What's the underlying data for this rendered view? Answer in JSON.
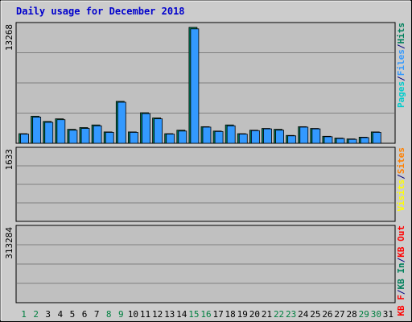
{
  "title": "Daily usage for December 2018",
  "colors": {
    "background": "#cccccc",
    "panel": "#c0c0c0",
    "pages": "#00cccc",
    "files": "#3399ff",
    "hits": "#00805c",
    "visits": "#ffff00",
    "sites": "#ff8000",
    "kb_in": "#00805c",
    "kb_out": "#ff0000",
    "weekend_label": "#008040",
    "weekday_label": "#000000"
  },
  "chart_data": [
    {
      "type": "bar",
      "name": "top",
      "max_label": "13268",
      "ymax": 13268,
      "side_labels": [
        {
          "text": "Pages",
          "color": "#00cccc"
        },
        {
          "text": "/",
          "color": "#000080"
        },
        {
          "text": "Files",
          "color": "#3399ff"
        },
        {
          "text": "/",
          "color": "#000080"
        },
        {
          "text": "Hits",
          "color": "#00805c"
        }
      ],
      "series": [
        {
          "name": "Hits",
          "values": [
            1100,
            3100,
            2500,
            2800,
            1600,
            1800,
            2100,
            1300,
            4800,
            1300,
            3500,
            2900,
            1100,
            1500,
            13268,
            1900,
            1400,
            2100,
            1100,
            1500,
            1700,
            1600,
            900,
            1900,
            1700,
            800,
            600,
            500,
            700,
            1300,
            0
          ]
        },
        {
          "name": "Files",
          "values": [
            1050,
            3000,
            2400,
            2700,
            1500,
            1700,
            2000,
            1250,
            4700,
            1250,
            3400,
            2800,
            1050,
            1400,
            13100,
            1850,
            1350,
            2000,
            1050,
            1450,
            1650,
            1500,
            850,
            1850,
            1650,
            750,
            550,
            450,
            650,
            1250,
            0
          ]
        }
      ]
    },
    {
      "type": "bar",
      "name": "middle",
      "max_label": "1633",
      "ymax": 1633,
      "side_labels": [
        {
          "text": "Visits",
          "color": "#ffff00"
        },
        {
          "text": "/",
          "color": "#000080"
        },
        {
          "text": "Sites",
          "color": "#ff8000"
        }
      ],
      "series": [
        {
          "name": "Visits",
          "values": [
            0,
            0,
            0,
            0,
            0,
            0,
            0,
            0,
            0,
            0,
            0,
            0,
            0,
            0,
            0,
            0,
            0,
            0,
            0,
            0,
            0,
            0,
            0,
            0,
            0,
            0,
            0,
            0,
            0,
            0,
            0
          ]
        },
        {
          "name": "Sites",
          "values": [
            0,
            0,
            0,
            0,
            0,
            0,
            0,
            0,
            0,
            0,
            0,
            0,
            0,
            0,
            0,
            0,
            0,
            0,
            0,
            0,
            0,
            0,
            0,
            0,
            0,
            0,
            0,
            0,
            0,
            0,
            0
          ]
        }
      ]
    },
    {
      "type": "bar",
      "name": "bottom",
      "max_label": "313284",
      "ymax": 313284,
      "side_labels": [
        {
          "text": "KB F",
          "color": "#ff0000"
        },
        {
          "text": "/",
          "color": "#000080"
        },
        {
          "text": "KB In",
          "color": "#00805c"
        },
        {
          "text": "/",
          "color": "#000080"
        },
        {
          "text": "KB Out",
          "color": "#ff0000"
        }
      ],
      "series": [
        {
          "name": "KB F",
          "values": [
            0,
            0,
            0,
            0,
            0,
            0,
            0,
            0,
            0,
            0,
            0,
            0,
            0,
            0,
            0,
            0,
            0,
            0,
            0,
            0,
            0,
            0,
            0,
            0,
            0,
            0,
            0,
            0,
            0,
            0,
            0
          ]
        }
      ]
    }
  ],
  "days": [
    "1",
    "2",
    "3",
    "4",
    "5",
    "6",
    "7",
    "8",
    "9",
    "10",
    "11",
    "12",
    "13",
    "14",
    "15",
    "16",
    "17",
    "18",
    "19",
    "20",
    "21",
    "22",
    "23",
    "24",
    "25",
    "26",
    "27",
    "28",
    "29",
    "30",
    "31"
  ],
  "weekend_days": [
    1,
    2,
    8,
    9,
    15,
    16,
    22,
    23,
    29,
    30
  ]
}
